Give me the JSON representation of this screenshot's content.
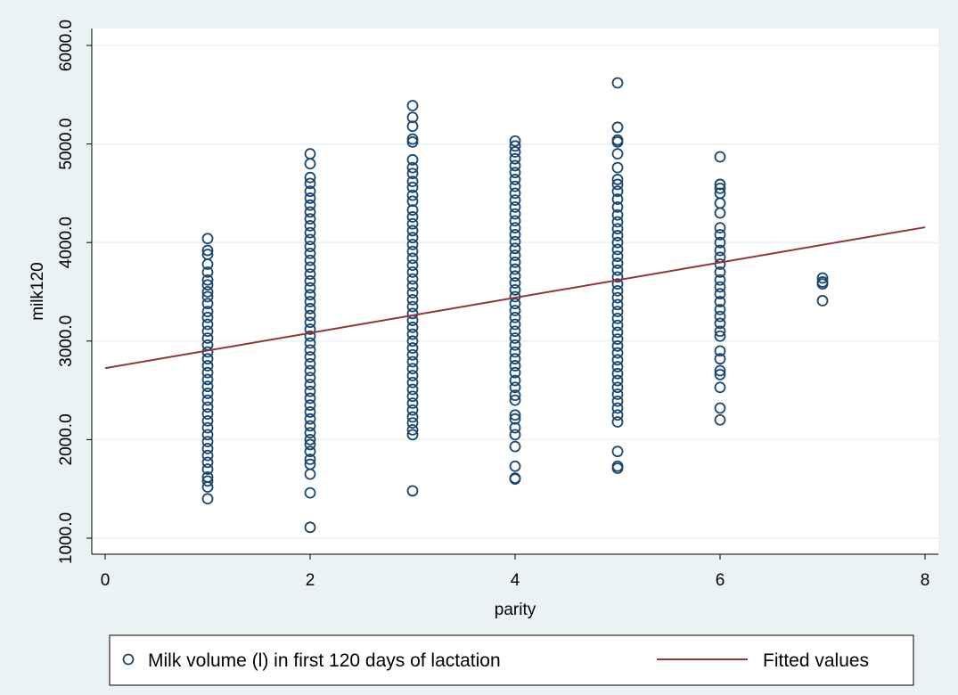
{
  "chart_data": {
    "type": "scatter",
    "xlabel": "parity",
    "ylabel": "milk120",
    "xlim": [
      0,
      8
    ],
    "ylim": [
      1000,
      6000
    ],
    "x_ticks": [
      0,
      2,
      4,
      6,
      8
    ],
    "x_tick_labels": [
      "0",
      "2",
      "4",
      "6",
      "8"
    ],
    "y_ticks": [
      1000,
      2000,
      3000,
      4000,
      5000,
      6000
    ],
    "y_tick_labels": [
      "1000.0",
      "2000.0",
      "3000.0",
      "4000.0",
      "5000.0",
      "6000.0"
    ],
    "grid": "horizontal",
    "legend_position": "bottom",
    "colors": {
      "background": "#eaf2f3",
      "plot_background": "#ffffff",
      "marker": "#1a476f",
      "fitted_line": "#90353b",
      "grid": "#eaf2f3"
    },
    "series": [
      {
        "name": "Milk volume (l) in first 120 days of lactation",
        "kind": "scatter",
        "marker": "hollow-circle",
        "points": [
          {
            "x": 1,
            "y": 4040
          },
          {
            "x": 1,
            "y": 3920
          },
          {
            "x": 1,
            "y": 3880
          },
          {
            "x": 1,
            "y": 3780
          },
          {
            "x": 1,
            "y": 3700
          },
          {
            "x": 1,
            "y": 3620
          },
          {
            "x": 1,
            "y": 3570
          },
          {
            "x": 1,
            "y": 3500
          },
          {
            "x": 1,
            "y": 3450
          },
          {
            "x": 1,
            "y": 3380
          },
          {
            "x": 1,
            "y": 3300
          },
          {
            "x": 1,
            "y": 3240
          },
          {
            "x": 1,
            "y": 3170
          },
          {
            "x": 1,
            "y": 3100
          },
          {
            "x": 1,
            "y": 3030
          },
          {
            "x": 1,
            "y": 2960
          },
          {
            "x": 1,
            "y": 2890
          },
          {
            "x": 1,
            "y": 2820
          },
          {
            "x": 1,
            "y": 2750
          },
          {
            "x": 1,
            "y": 2680
          },
          {
            "x": 1,
            "y": 2610
          },
          {
            "x": 1,
            "y": 2540
          },
          {
            "x": 1,
            "y": 2470
          },
          {
            "x": 1,
            "y": 2400
          },
          {
            "x": 1,
            "y": 2330
          },
          {
            "x": 1,
            "y": 2260
          },
          {
            "x": 1,
            "y": 2190
          },
          {
            "x": 1,
            "y": 2120
          },
          {
            "x": 1,
            "y": 2050
          },
          {
            "x": 1,
            "y": 1980
          },
          {
            "x": 1,
            "y": 1910
          },
          {
            "x": 1,
            "y": 1840
          },
          {
            "x": 1,
            "y": 1770
          },
          {
            "x": 1,
            "y": 1700
          },
          {
            "x": 1,
            "y": 1620
          },
          {
            "x": 1,
            "y": 1580
          },
          {
            "x": 1,
            "y": 1520
          },
          {
            "x": 1,
            "y": 1400
          },
          {
            "x": 2,
            "y": 4900
          },
          {
            "x": 2,
            "y": 4800
          },
          {
            "x": 2,
            "y": 4660
          },
          {
            "x": 2,
            "y": 4600
          },
          {
            "x": 2,
            "y": 4520
          },
          {
            "x": 2,
            "y": 4450
          },
          {
            "x": 2,
            "y": 4380
          },
          {
            "x": 2,
            "y": 4310
          },
          {
            "x": 2,
            "y": 4240
          },
          {
            "x": 2,
            "y": 4170
          },
          {
            "x": 2,
            "y": 4100
          },
          {
            "x": 2,
            "y": 4030
          },
          {
            "x": 2,
            "y": 3960
          },
          {
            "x": 2,
            "y": 3890
          },
          {
            "x": 2,
            "y": 3820
          },
          {
            "x": 2,
            "y": 3750
          },
          {
            "x": 2,
            "y": 3680
          },
          {
            "x": 2,
            "y": 3610
          },
          {
            "x": 2,
            "y": 3540
          },
          {
            "x": 2,
            "y": 3470
          },
          {
            "x": 2,
            "y": 3400
          },
          {
            "x": 2,
            "y": 3330
          },
          {
            "x": 2,
            "y": 3260
          },
          {
            "x": 2,
            "y": 3190
          },
          {
            "x": 2,
            "y": 3120
          },
          {
            "x": 2,
            "y": 3050
          },
          {
            "x": 2,
            "y": 2980
          },
          {
            "x": 2,
            "y": 2910
          },
          {
            "x": 2,
            "y": 2840
          },
          {
            "x": 2,
            "y": 2770
          },
          {
            "x": 2,
            "y": 2700
          },
          {
            "x": 2,
            "y": 2630
          },
          {
            "x": 2,
            "y": 2560
          },
          {
            "x": 2,
            "y": 2490
          },
          {
            "x": 2,
            "y": 2420
          },
          {
            "x": 2,
            "y": 2350
          },
          {
            "x": 2,
            "y": 2280
          },
          {
            "x": 2,
            "y": 2210
          },
          {
            "x": 2,
            "y": 2140
          },
          {
            "x": 2,
            "y": 2070
          },
          {
            "x": 2,
            "y": 2000
          },
          {
            "x": 2,
            "y": 1950
          },
          {
            "x": 2,
            "y": 1880
          },
          {
            "x": 2,
            "y": 1800
          },
          {
            "x": 2,
            "y": 1750
          },
          {
            "x": 2,
            "y": 1650
          },
          {
            "x": 2,
            "y": 1460
          },
          {
            "x": 2,
            "y": 1110
          },
          {
            "x": 3,
            "y": 5390
          },
          {
            "x": 3,
            "y": 5270
          },
          {
            "x": 3,
            "y": 5180
          },
          {
            "x": 3,
            "y": 5050
          },
          {
            "x": 3,
            "y": 5020
          },
          {
            "x": 3,
            "y": 4840
          },
          {
            "x": 3,
            "y": 4760
          },
          {
            "x": 3,
            "y": 4700
          },
          {
            "x": 3,
            "y": 4620
          },
          {
            "x": 3,
            "y": 4560
          },
          {
            "x": 3,
            "y": 4480
          },
          {
            "x": 3,
            "y": 4420
          },
          {
            "x": 3,
            "y": 4330
          },
          {
            "x": 3,
            "y": 4260
          },
          {
            "x": 3,
            "y": 4190
          },
          {
            "x": 3,
            "y": 4120
          },
          {
            "x": 3,
            "y": 4050
          },
          {
            "x": 3,
            "y": 3980
          },
          {
            "x": 3,
            "y": 3910
          },
          {
            "x": 3,
            "y": 3840
          },
          {
            "x": 3,
            "y": 3770
          },
          {
            "x": 3,
            "y": 3700
          },
          {
            "x": 3,
            "y": 3630
          },
          {
            "x": 3,
            "y": 3560
          },
          {
            "x": 3,
            "y": 3490
          },
          {
            "x": 3,
            "y": 3420
          },
          {
            "x": 3,
            "y": 3350
          },
          {
            "x": 3,
            "y": 3280
          },
          {
            "x": 3,
            "y": 3210
          },
          {
            "x": 3,
            "y": 3140
          },
          {
            "x": 3,
            "y": 3070
          },
          {
            "x": 3,
            "y": 3000
          },
          {
            "x": 3,
            "y": 2930
          },
          {
            "x": 3,
            "y": 2860
          },
          {
            "x": 3,
            "y": 2790
          },
          {
            "x": 3,
            "y": 2720
          },
          {
            "x": 3,
            "y": 2650
          },
          {
            "x": 3,
            "y": 2580
          },
          {
            "x": 3,
            "y": 2510
          },
          {
            "x": 3,
            "y": 2440
          },
          {
            "x": 3,
            "y": 2370
          },
          {
            "x": 3,
            "y": 2300
          },
          {
            "x": 3,
            "y": 2230
          },
          {
            "x": 3,
            "y": 2170
          },
          {
            "x": 3,
            "y": 2100
          },
          {
            "x": 3,
            "y": 2050
          },
          {
            "x": 3,
            "y": 1480
          },
          {
            "x": 4,
            "y": 5030
          },
          {
            "x": 4,
            "y": 4980
          },
          {
            "x": 4,
            "y": 4920
          },
          {
            "x": 4,
            "y": 4850
          },
          {
            "x": 4,
            "y": 4780
          },
          {
            "x": 4,
            "y": 4710
          },
          {
            "x": 4,
            "y": 4640
          },
          {
            "x": 4,
            "y": 4570
          },
          {
            "x": 4,
            "y": 4500
          },
          {
            "x": 4,
            "y": 4430
          },
          {
            "x": 4,
            "y": 4360
          },
          {
            "x": 4,
            "y": 4290
          },
          {
            "x": 4,
            "y": 4220
          },
          {
            "x": 4,
            "y": 4150
          },
          {
            "x": 4,
            "y": 4080
          },
          {
            "x": 4,
            "y": 4010
          },
          {
            "x": 4,
            "y": 3940
          },
          {
            "x": 4,
            "y": 3870
          },
          {
            "x": 4,
            "y": 3800
          },
          {
            "x": 4,
            "y": 3730
          },
          {
            "x": 4,
            "y": 3660
          },
          {
            "x": 4,
            "y": 3590
          },
          {
            "x": 4,
            "y": 3520
          },
          {
            "x": 4,
            "y": 3450
          },
          {
            "x": 4,
            "y": 3380
          },
          {
            "x": 4,
            "y": 3310
          },
          {
            "x": 4,
            "y": 3240
          },
          {
            "x": 4,
            "y": 3170
          },
          {
            "x": 4,
            "y": 3100
          },
          {
            "x": 4,
            "y": 3030
          },
          {
            "x": 4,
            "y": 2960
          },
          {
            "x": 4,
            "y": 2890
          },
          {
            "x": 4,
            "y": 2820
          },
          {
            "x": 4,
            "y": 2750
          },
          {
            "x": 4,
            "y": 2680
          },
          {
            "x": 4,
            "y": 2600
          },
          {
            "x": 4,
            "y": 2530
          },
          {
            "x": 4,
            "y": 2450
          },
          {
            "x": 4,
            "y": 2400
          },
          {
            "x": 4,
            "y": 2250
          },
          {
            "x": 4,
            "y": 2210
          },
          {
            "x": 4,
            "y": 2120
          },
          {
            "x": 4,
            "y": 2050
          },
          {
            "x": 4,
            "y": 1930
          },
          {
            "x": 4,
            "y": 1730
          },
          {
            "x": 4,
            "y": 1610
          },
          {
            "x": 4,
            "y": 1600
          },
          {
            "x": 5,
            "y": 5620
          },
          {
            "x": 5,
            "y": 5170
          },
          {
            "x": 5,
            "y": 5040
          },
          {
            "x": 5,
            "y": 5020
          },
          {
            "x": 5,
            "y": 4900
          },
          {
            "x": 5,
            "y": 4760
          },
          {
            "x": 5,
            "y": 4640
          },
          {
            "x": 5,
            "y": 4590
          },
          {
            "x": 5,
            "y": 4520
          },
          {
            "x": 5,
            "y": 4440
          },
          {
            "x": 5,
            "y": 4360
          },
          {
            "x": 5,
            "y": 4280
          },
          {
            "x": 5,
            "y": 4210
          },
          {
            "x": 5,
            "y": 4140
          },
          {
            "x": 5,
            "y": 4070
          },
          {
            "x": 5,
            "y": 4000
          },
          {
            "x": 5,
            "y": 3930
          },
          {
            "x": 5,
            "y": 3860
          },
          {
            "x": 5,
            "y": 3790
          },
          {
            "x": 5,
            "y": 3720
          },
          {
            "x": 5,
            "y": 3650
          },
          {
            "x": 5,
            "y": 3580
          },
          {
            "x": 5,
            "y": 3510
          },
          {
            "x": 5,
            "y": 3440
          },
          {
            "x": 5,
            "y": 3370
          },
          {
            "x": 5,
            "y": 3300
          },
          {
            "x": 5,
            "y": 3230
          },
          {
            "x": 5,
            "y": 3160
          },
          {
            "x": 5,
            "y": 3090
          },
          {
            "x": 5,
            "y": 3020
          },
          {
            "x": 5,
            "y": 2950
          },
          {
            "x": 5,
            "y": 2880
          },
          {
            "x": 5,
            "y": 2810
          },
          {
            "x": 5,
            "y": 2740
          },
          {
            "x": 5,
            "y": 2670
          },
          {
            "x": 5,
            "y": 2600
          },
          {
            "x": 5,
            "y": 2530
          },
          {
            "x": 5,
            "y": 2460
          },
          {
            "x": 5,
            "y": 2390
          },
          {
            "x": 5,
            "y": 2320
          },
          {
            "x": 5,
            "y": 2250
          },
          {
            "x": 5,
            "y": 2180
          },
          {
            "x": 5,
            "y": 1880
          },
          {
            "x": 5,
            "y": 1730
          },
          {
            "x": 5,
            "y": 1710
          },
          {
            "x": 6,
            "y": 4870
          },
          {
            "x": 6,
            "y": 4590
          },
          {
            "x": 6,
            "y": 4550
          },
          {
            "x": 6,
            "y": 4500
          },
          {
            "x": 6,
            "y": 4400
          },
          {
            "x": 6,
            "y": 4300
          },
          {
            "x": 6,
            "y": 4150
          },
          {
            "x": 6,
            "y": 4080
          },
          {
            "x": 6,
            "y": 4000
          },
          {
            "x": 6,
            "y": 3920
          },
          {
            "x": 6,
            "y": 3850
          },
          {
            "x": 6,
            "y": 3780
          },
          {
            "x": 6,
            "y": 3700
          },
          {
            "x": 6,
            "y": 3620
          },
          {
            "x": 6,
            "y": 3550
          },
          {
            "x": 6,
            "y": 3480
          },
          {
            "x": 6,
            "y": 3400
          },
          {
            "x": 6,
            "y": 3320
          },
          {
            "x": 6,
            "y": 3250
          },
          {
            "x": 6,
            "y": 3180
          },
          {
            "x": 6,
            "y": 3100
          },
          {
            "x": 6,
            "y": 3050
          },
          {
            "x": 6,
            "y": 2900
          },
          {
            "x": 6,
            "y": 2820
          },
          {
            "x": 6,
            "y": 2700
          },
          {
            "x": 6,
            "y": 2660
          },
          {
            "x": 6,
            "y": 2530
          },
          {
            "x": 6,
            "y": 2320
          },
          {
            "x": 6,
            "y": 2200
          },
          {
            "x": 7,
            "y": 3640
          },
          {
            "x": 7,
            "y": 3600
          },
          {
            "x": 7,
            "y": 3580
          },
          {
            "x": 7,
            "y": 3410
          }
        ]
      },
      {
        "name": "Fitted values",
        "kind": "line",
        "points": [
          {
            "x": 0,
            "y": 2725
          },
          {
            "x": 8,
            "y": 4155
          }
        ]
      }
    ],
    "legend": [
      {
        "label": "Milk volume (l) in first 120 days of lactation",
        "symbol": "hollow-circle"
      },
      {
        "label": "Fitted values",
        "symbol": "line"
      }
    ]
  }
}
